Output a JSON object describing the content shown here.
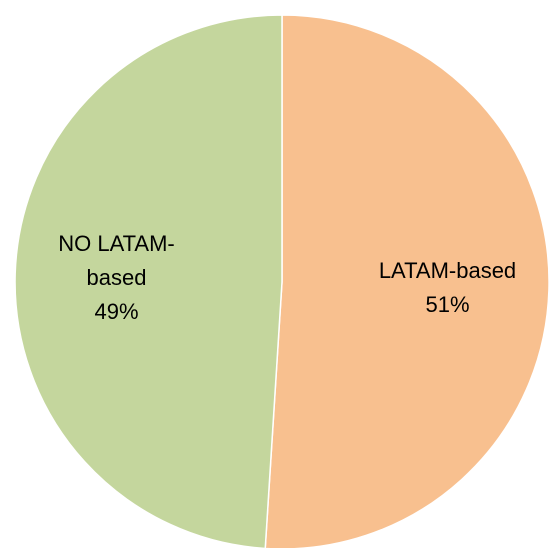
{
  "chart_data": {
    "type": "pie",
    "title": "",
    "slices": [
      {
        "category": "LATAM-based",
        "value": 51,
        "label_lines": [
          "LATAM-based",
          "51%"
        ],
        "color": "#F8C08F"
      },
      {
        "category": "NO LATAM-based",
        "value": 49,
        "label_lines": [
          "NO LATAM-",
          "based",
          "49%"
        ],
        "color": "#C4D69D"
      }
    ],
    "start_angle_deg": 0,
    "direction": "clockwise",
    "legend": "none",
    "slice_border_color": "#ffffff"
  }
}
